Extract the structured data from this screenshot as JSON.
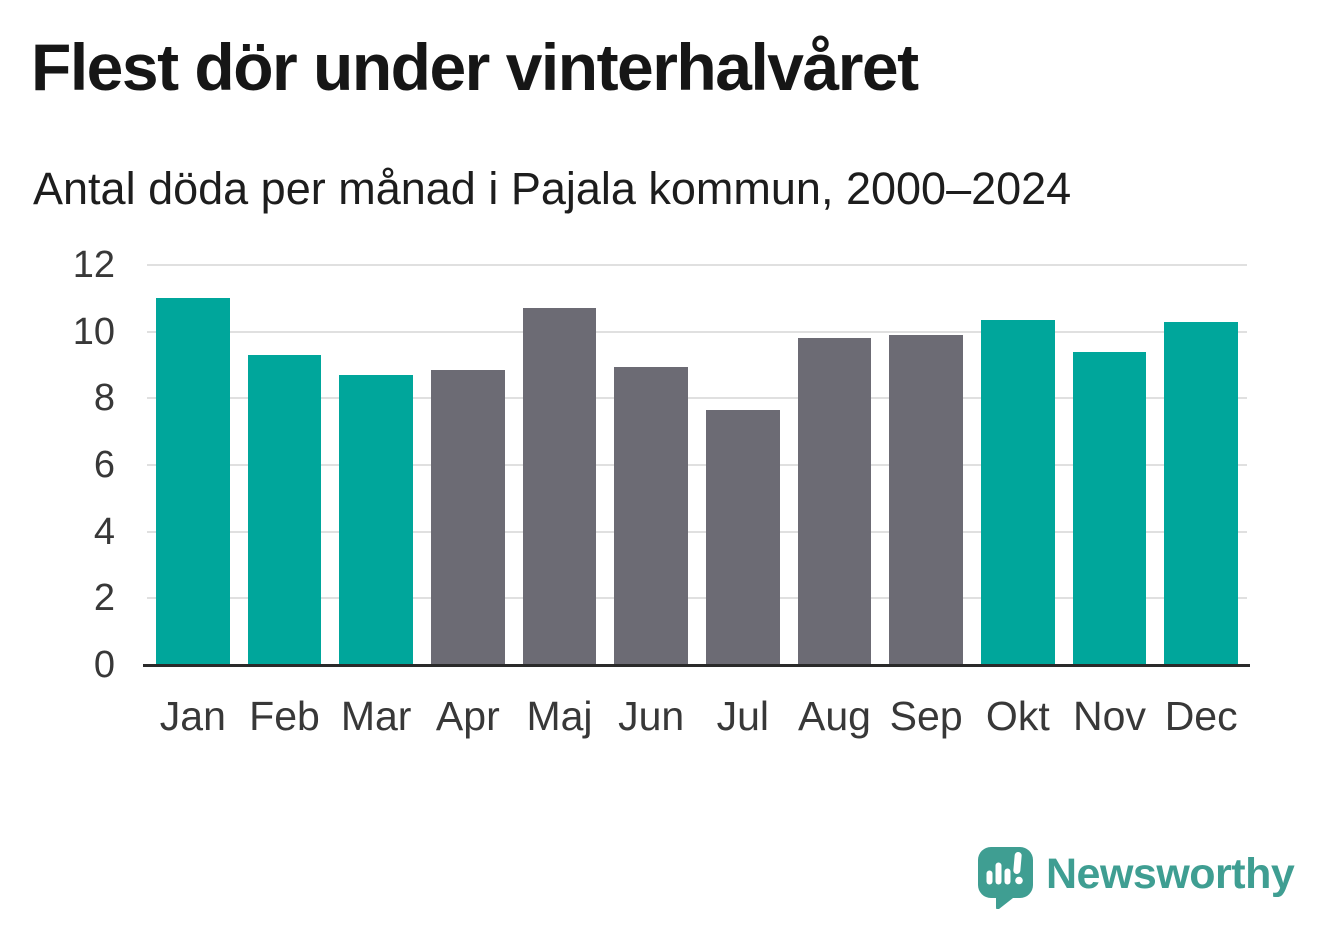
{
  "page": {
    "title": "Flest dör under vinterhalvåret",
    "subtitle": "Antal döda per månad i Pajala kommun, 2000–2024"
  },
  "chart_data": {
    "type": "bar",
    "title": "Flest dör under vinterhalvåret",
    "subtitle": "Antal döda per månad i Pajala kommun, 2000–2024",
    "categories": [
      "Jan",
      "Feb",
      "Mar",
      "Apr",
      "Maj",
      "Jun",
      "Jul",
      "Aug",
      "Sep",
      "Okt",
      "Nov",
      "Dec"
    ],
    "values": [
      11.0,
      9.3,
      8.7,
      8.85,
      10.7,
      8.95,
      7.65,
      9.8,
      9.9,
      10.35,
      9.4,
      10.3
    ],
    "highlighted": [
      true,
      true,
      true,
      false,
      false,
      false,
      false,
      false,
      false,
      true,
      true,
      true
    ],
    "colors": {
      "highlight": "#00a69b",
      "default": "#6c6b74",
      "grid": "#e0e0e0",
      "axis": "#2a2a2a",
      "tick_text": "#383838"
    },
    "xlabel": "",
    "ylabel": "",
    "ylim": [
      0,
      12
    ],
    "yticks": [
      0,
      2,
      4,
      6,
      8,
      10,
      12
    ],
    "grid": "horizontal",
    "legend": "none"
  },
  "footer": {
    "brand": "Newsworthy",
    "brand_color": "#3f9e92",
    "logo_icon": "newsworthy-speech-bubble-chart-icon"
  }
}
